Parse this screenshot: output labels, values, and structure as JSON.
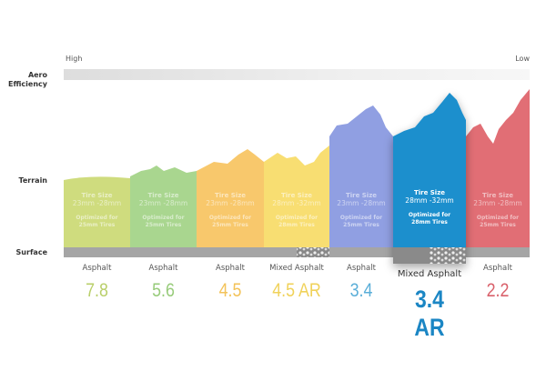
{
  "rows": {
    "aero": "Aero Efficiency",
    "terrain": "Terrain",
    "surface": "Surface"
  },
  "scale": {
    "high": "High",
    "low": "Low"
  },
  "columns": [
    {
      "tire_title": "Tire Size",
      "tire_size": "23mm -28mm",
      "optimized": "Optimized for",
      "optimized_size": "25mm Tires",
      "surface": "Asphalt",
      "score": "7.8",
      "color": "#cfdc7e",
      "score_color": "#b9cf6a"
    },
    {
      "tire_title": "Tire Size",
      "tire_size": "23mm -28mm",
      "optimized": "Optimized for",
      "optimized_size": "25mm Tires",
      "surface": "Asphalt",
      "score": "5.6",
      "color": "#a9d68f",
      "score_color": "#97cb7a"
    },
    {
      "tire_title": "Tire Size",
      "tire_size": "23mm -28mm",
      "optimized": "Optimized for",
      "optimized_size": "25mm Tires",
      "surface": "Asphalt",
      "score": "4.5",
      "color": "#f8c86c",
      "score_color": "#f3c35a"
    },
    {
      "tire_title": "Tire Size",
      "tire_size": "28mm -32mm",
      "optimized": "Optimized for",
      "optimized_size": "28mm Tires",
      "surface": "Mixed Asphalt",
      "score": "4.5 AR",
      "color": "#f8de72",
      "score_color": "#f0d25a"
    },
    {
      "tire_title": "Tire Size",
      "tire_size": "23mm -28mm",
      "optimized": "Optimized for",
      "optimized_size": "25mm Tires",
      "surface": "Asphalt",
      "score": "3.4",
      "color": "#909fe2",
      "score_color": "#5aaed8"
    },
    {
      "tire_title": "Tire Size",
      "tire_size": "28mm -32mm",
      "optimized": "Optimized for",
      "optimized_size": "28mm Tires",
      "surface": "Mixed Asphalt",
      "score": "3.4 AR",
      "color": "#1b8fcd",
      "score_color": "#1b86c4"
    },
    {
      "tire_title": "Tire Size",
      "tire_size": "23mm -28mm",
      "optimized": "Optimized for",
      "optimized_size": "25mm Tires",
      "surface": "Asphalt",
      "score": "2.2",
      "color": "#e16e75",
      "score_color": "#d9606a"
    }
  ]
}
